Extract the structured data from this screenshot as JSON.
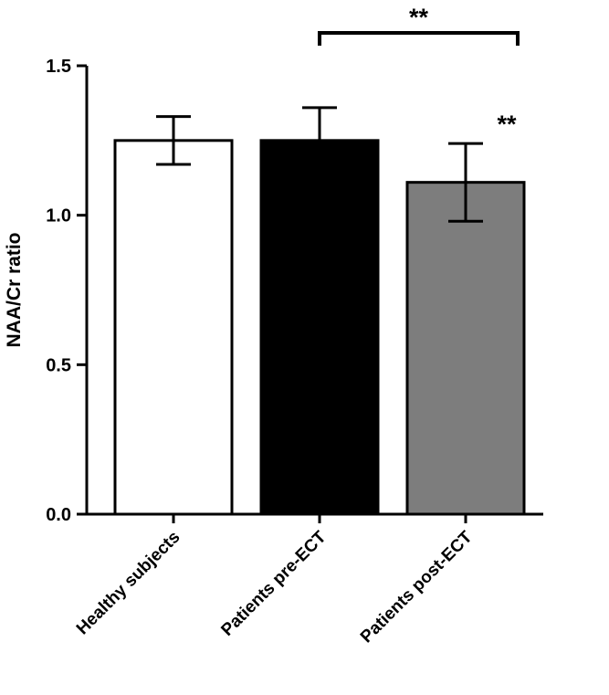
{
  "figure": {
    "background_color": "#ffffff"
  },
  "chart_data": {
    "type": "bar",
    "title": "",
    "xlabel": "",
    "ylabel": "NAA/Cr ratio",
    "ylim": [
      0.0,
      1.5
    ],
    "yticks": [
      0.0,
      0.5,
      1.0,
      1.5
    ],
    "grid": false,
    "legend": null,
    "categories": [
      "Healthy subjects",
      "Patients pre-ECT",
      "Patients post-ECT"
    ],
    "series": [
      {
        "name": "NAA/Cr ratio",
        "values": [
          1.25,
          1.25,
          1.11
        ],
        "errors": [
          0.08,
          0.11,
          0.13
        ]
      }
    ],
    "bar_fill_colors": [
      "#ffffff",
      "#000000",
      "#7d7d7d"
    ],
    "bar_edge_color": "#000000",
    "axis_color": "#000000",
    "error_bar_color": "#000000",
    "annotations": [
      {
        "type": "significance-bracket",
        "between": [
          "Patients pre-ECT",
          "Patients post-ECT"
        ],
        "label": "**"
      },
      {
        "type": "significance-star",
        "category": "Patients post-ECT",
        "label": "**"
      }
    ]
  }
}
